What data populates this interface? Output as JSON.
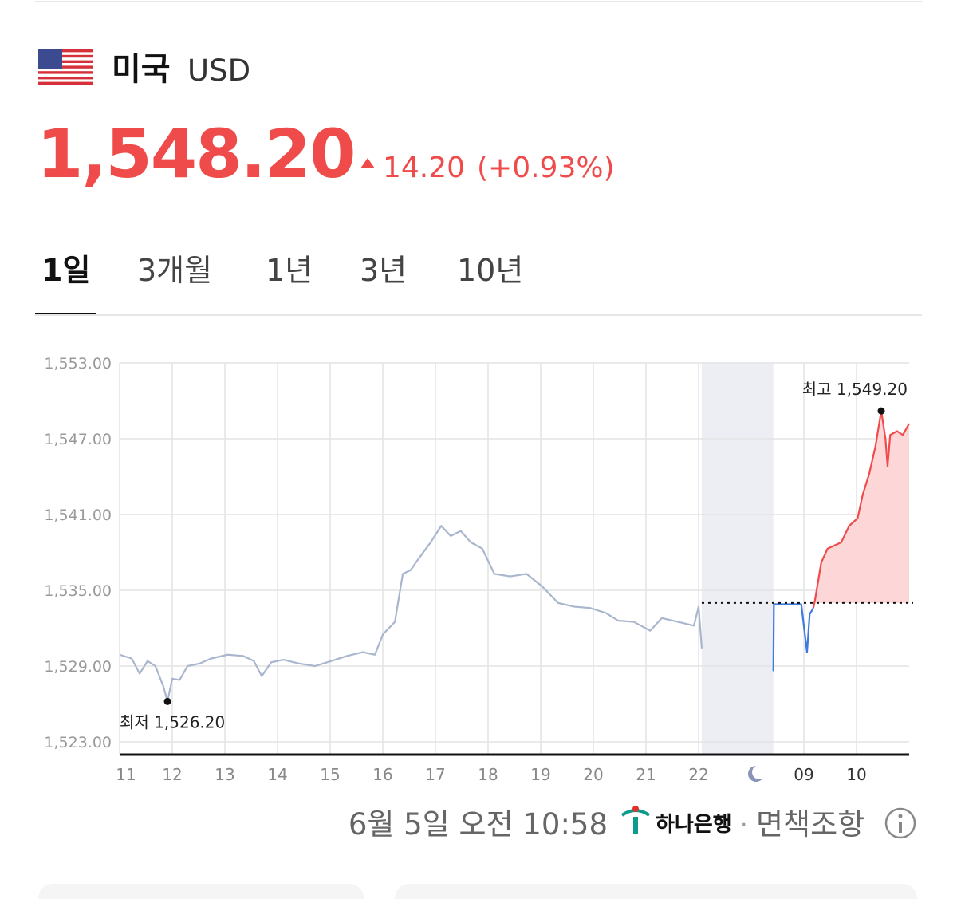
{
  "header": {
    "country": "미국",
    "currency": "USD",
    "price": "1,548.20",
    "change": "14.20",
    "change_pct": "(+0.93%)"
  },
  "tabs": [
    "1일",
    "3개월",
    "1년",
    "3년",
    "10년"
  ],
  "active_tab": 0,
  "chart_data": {
    "type": "line",
    "ylim": [
      1523,
      1553
    ],
    "yticks": [
      {
        "value": 1523,
        "label": "1,523.00"
      },
      {
        "value": 1529,
        "label": "1,529.00"
      },
      {
        "value": 1535,
        "label": "1,535.00"
      },
      {
        "value": 1541,
        "label": "1,541.00"
      },
      {
        "value": 1547,
        "label": "1,547.00"
      },
      {
        "value": 1553,
        "label": "1,553.00"
      }
    ],
    "xlim": [
      11,
      26
    ],
    "xticks": [
      11,
      12,
      13,
      14,
      15,
      16,
      17,
      18,
      19,
      20,
      21,
      22,
      {
        "value": 24,
        "label": "09"
      },
      {
        "value": 25,
        "label": "10"
      }
    ],
    "grid": true,
    "night_band": [
      22.06,
      23.42
    ],
    "reference_line": 1534,
    "series": [
      {
        "color": "#a9b6cd",
        "x": [
          11.0,
          11.23,
          11.38,
          11.53,
          11.68,
          11.83,
          11.91,
          12.0,
          12.14,
          12.29,
          12.52,
          12.74,
          13.05,
          13.35,
          13.55,
          13.7,
          13.88,
          14.11,
          14.41,
          14.71,
          15.02,
          15.32,
          15.62,
          15.85,
          16.0,
          16.23,
          16.38,
          16.53,
          16.68,
          16.91,
          17.11,
          17.29,
          17.48,
          17.67,
          17.89,
          18.12,
          18.42,
          18.73,
          19.03,
          19.33,
          19.64,
          19.94,
          20.24,
          20.47,
          20.77,
          21.08,
          21.3,
          21.61,
          21.91,
          22.0,
          22.06
        ],
        "values": [
          1529.9,
          1529.6,
          1528.4,
          1529.4,
          1529.0,
          1527.4,
          1526.2,
          1528.0,
          1527.9,
          1529.0,
          1529.2,
          1529.6,
          1529.9,
          1529.8,
          1529.4,
          1528.2,
          1529.3,
          1529.5,
          1529.2,
          1529.0,
          1529.4,
          1529.8,
          1530.1,
          1529.9,
          1531.5,
          1532.5,
          1536.3,
          1536.6,
          1537.5,
          1538.8,
          1540.1,
          1539.3,
          1539.7,
          1538.8,
          1538.3,
          1536.3,
          1536.1,
          1536.3,
          1535.3,
          1534.0,
          1533.7,
          1533.6,
          1533.2,
          1532.6,
          1532.5,
          1531.8,
          1532.8,
          1532.5,
          1532.2,
          1533.7,
          1530.4
        ]
      },
      {
        "color": "#3d7be0",
        "x": [
          23.42,
          23.43,
          23.95,
          24.06,
          24.11,
          24.18
        ],
        "values": [
          1528.6,
          1533.9,
          1533.9,
          1530.1,
          1533.1,
          1533.6
        ]
      },
      {
        "color": "#f04b4b",
        "area": true,
        "area_color": "#fdd6d8",
        "x": [
          24.18,
          24.21,
          24.33,
          24.45,
          24.71,
          24.86,
          25.02,
          25.12,
          25.24,
          25.36,
          25.47,
          25.55,
          25.59,
          25.64,
          25.77,
          25.88,
          26.0
        ],
        "values": [
          1533.6,
          1534.2,
          1537.2,
          1538.3,
          1538.8,
          1540.1,
          1540.7,
          1542.6,
          1544.2,
          1546.4,
          1549.2,
          1547.0,
          1544.8,
          1547.3,
          1547.6,
          1547.3,
          1548.2
        ]
      }
    ],
    "annotations": [
      {
        "label": "최고 1,549.20",
        "x": 25.47,
        "y": 1549.2
      },
      {
        "label": "최저 1,526.20",
        "x": 11.91,
        "y": 1526.2
      }
    ]
  },
  "footer": {
    "timestamp": "6월 5일 오전 10:58",
    "bank": "하나은행",
    "separator": "·",
    "disclaimer": "면책조항"
  }
}
